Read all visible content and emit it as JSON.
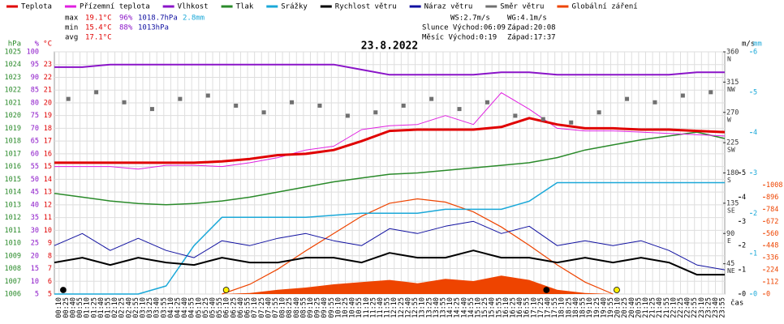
{
  "chart_data": {
    "type": "line",
    "title": "23.8.2022",
    "x_label": "čas",
    "xlim": [
      0,
      1440
    ],
    "x": [
      0,
      60,
      120,
      180,
      240,
      300,
      360,
      420,
      480,
      540,
      600,
      660,
      720,
      780,
      840,
      900,
      960,
      1020,
      1080,
      1140,
      1200,
      1260,
      1320,
      1380,
      1440
    ],
    "xticks": [
      {
        "value": 10,
        "label": "00:10"
      },
      {
        "value": 25,
        "label": "00:25"
      },
      {
        "value": 40,
        "label": "00:40"
      },
      {
        "value": 55,
        "label": "00:55"
      },
      {
        "value": 70,
        "label": "01:10"
      },
      {
        "value": 85,
        "label": "01:25"
      },
      {
        "value": 100,
        "label": "01:40"
      },
      {
        "value": 115,
        "label": "01:55"
      },
      {
        "value": 130,
        "label": "02:10"
      },
      {
        "value": 145,
        "label": "02:25"
      },
      {
        "value": 160,
        "label": "02:40"
      },
      {
        "value": 175,
        "label": "02:55"
      },
      {
        "value": 190,
        "label": "03:10"
      },
      {
        "value": 205,
        "label": "03:25"
      },
      {
        "value": 220,
        "label": "03:40"
      },
      {
        "value": 235,
        "label": "03:55"
      },
      {
        "value": 250,
        "label": "04:10"
      },
      {
        "value": 265,
        "label": "04:25"
      },
      {
        "value": 280,
        "label": "04:40"
      },
      {
        "value": 295,
        "label": "04:55"
      },
      {
        "value": 310,
        "label": "05:10"
      },
      {
        "value": 325,
        "label": "05:25"
      },
      {
        "value": 340,
        "label": "05:40"
      },
      {
        "value": 355,
        "label": "05:55"
      },
      {
        "value": 370,
        "label": "06:10"
      },
      {
        "value": 385,
        "label": "06:25"
      },
      {
        "value": 400,
        "label": "06:40"
      },
      {
        "value": 415,
        "label": "06:55"
      },
      {
        "value": 430,
        "label": "07:10"
      },
      {
        "value": 445,
        "label": "07:25"
      },
      {
        "value": 460,
        "label": "07:40"
      },
      {
        "value": 475,
        "label": "07:55"
      },
      {
        "value": 490,
        "label": "08:10"
      },
      {
        "value": 505,
        "label": "08:25"
      },
      {
        "value": 520,
        "label": "08:40"
      },
      {
        "value": 535,
        "label": "08:55"
      },
      {
        "value": 550,
        "label": "09:10"
      },
      {
        "value": 565,
        "label": "09:25"
      },
      {
        "value": 580,
        "label": "09:40"
      },
      {
        "value": 595,
        "label": "09:55"
      },
      {
        "value": 610,
        "label": "10:10"
      },
      {
        "value": 625,
        "label": "10:25"
      },
      {
        "value": 640,
        "label": "10:40"
      },
      {
        "value": 655,
        "label": "10:55"
      },
      {
        "value": 670,
        "label": "11:10"
      },
      {
        "value": 685,
        "label": "11:25"
      },
      {
        "value": 700,
        "label": "11:40"
      },
      {
        "value": 715,
        "label": "11:55"
      },
      {
        "value": 730,
        "label": "12:10"
      },
      {
        "value": 745,
        "label": "12:25"
      },
      {
        "value": 760,
        "label": "12:40"
      },
      {
        "value": 775,
        "label": "12:55"
      },
      {
        "value": 790,
        "label": "13:10"
      },
      {
        "value": 805,
        "label": "13:25"
      },
      {
        "value": 820,
        "label": "13:40"
      },
      {
        "value": 835,
        "label": "13:55"
      },
      {
        "value": 850,
        "label": "14:10"
      },
      {
        "value": 865,
        "label": "14:25"
      },
      {
        "value": 880,
        "label": "14:40"
      },
      {
        "value": 895,
        "label": "14:55"
      },
      {
        "value": 910,
        "label": "15:10"
      },
      {
        "value": 925,
        "label": "15:25"
      },
      {
        "value": 940,
        "label": "15:40"
      },
      {
        "value": 955,
        "label": "15:55"
      },
      {
        "value": 970,
        "label": "16:10"
      },
      {
        "value": 985,
        "label": "16:25"
      },
      {
        "value": 1000,
        "label": "16:40"
      },
      {
        "value": 1015,
        "label": "16:55"
      },
      {
        "value": 1030,
        "label": "17:10"
      },
      {
        "value": 1045,
        "label": "17:25"
      },
      {
        "value": 1060,
        "label": "17:40"
      },
      {
        "value": 1075,
        "label": "17:55"
      },
      {
        "value": 1090,
        "label": "18:10"
      },
      {
        "value": 1105,
        "label": "18:25"
      },
      {
        "value": 1120,
        "label": "18:40"
      },
      {
        "value": 1135,
        "label": "18:55"
      },
      {
        "value": 1150,
        "label": "19:10"
      },
      {
        "value": 1165,
        "label": "19:25"
      },
      {
        "value": 1180,
        "label": "19:40"
      },
      {
        "value": 1195,
        "label": "19:55"
      },
      {
        "value": 1210,
        "label": "20:10"
      },
      {
        "value": 1225,
        "label": "20:25"
      },
      {
        "value": 1240,
        "label": "20:40"
      },
      {
        "value": 1255,
        "label": "20:55"
      },
      {
        "value": 1270,
        "label": "21:10"
      },
      {
        "value": 1285,
        "label": "21:25"
      },
      {
        "value": 1300,
        "label": "21:40"
      },
      {
        "value": 1315,
        "label": "21:55"
      },
      {
        "value": 1330,
        "label": "22:10"
      },
      {
        "value": 1345,
        "label": "22:25"
      },
      {
        "value": 1360,
        "label": "22:40"
      },
      {
        "value": 1375,
        "label": "22:55"
      },
      {
        "value": 1390,
        "label": "23:10"
      },
      {
        "value": 1405,
        "label": "23:25"
      },
      {
        "value": 1420,
        "label": "23:40"
      },
      {
        "value": 1435,
        "label": "23:55"
      }
    ],
    "grid": true,
    "axes": [
      {
        "unit": "hPa",
        "color": "#2a8a2a",
        "side": "left",
        "ylim": [
          1006,
          1025
        ],
        "yticks": [
          1006,
          1007,
          1008,
          1009,
          1010,
          1011,
          1012,
          1013,
          1014,
          1015,
          1016,
          1017,
          1018,
          1019,
          1020,
          1021,
          1022,
          1023,
          1024,
          1025
        ]
      },
      {
        "unit": "%",
        "color": "#8a14c8",
        "side": "left",
        "ylim": [
          5,
          100
        ],
        "yticks": [
          5,
          10,
          15,
          20,
          25,
          30,
          35,
          40,
          45,
          50,
          55,
          60,
          65,
          70,
          75,
          80,
          85,
          90,
          95,
          100
        ]
      },
      {
        "unit": "°C",
        "color": "#e00000",
        "side": "left",
        "ylim": [
          5,
          24
        ],
        "yticks": [
          5,
          6,
          7,
          8,
          9,
          10,
          11,
          12,
          13,
          14,
          15,
          16,
          17,
          18,
          19,
          20,
          21,
          22,
          23
        ]
      },
      {
        "color": "#333333",
        "side": "right",
        "ylim": [
          0,
          360
        ],
        "yticks": [
          45,
          90,
          135,
          180,
          225,
          270,
          315,
          360
        ],
        "tick_names": [
          "NE",
          "E",
          "SE",
          "S",
          "SW",
          "W",
          "NW",
          "N"
        ]
      },
      {
        "unit": "m/s",
        "color": "#000000",
        "side": "right",
        "ylim": [
          0,
          10
        ],
        "yticks": [
          0,
          1,
          2,
          3,
          4,
          5
        ]
      },
      {
        "unit": "mm",
        "color": "#1aa8d8",
        "side": "right",
        "ylim": [
          0,
          6
        ],
        "yticks": [
          0,
          1,
          2,
          3,
          4,
          5,
          6
        ]
      },
      {
        "color": "#ee4400",
        "side": "right",
        "ylim": [
          0,
          2240
        ],
        "yticks": [
          0,
          112,
          224,
          336,
          448,
          560,
          672,
          784,
          896,
          1008
        ]
      }
    ],
    "series": [
      {
        "name": "Teplota",
        "color": "#e00000",
        "axis": 2,
        "width": 3,
        "values": [
          15.3,
          15.3,
          15.3,
          15.3,
          15.3,
          15.3,
          15.4,
          15.6,
          15.9,
          16.0,
          16.3,
          17.0,
          17.8,
          17.9,
          17.9,
          17.9,
          18.1,
          18.8,
          18.3,
          18.0,
          18.0,
          17.9,
          17.9,
          17.8,
          17.7
        ]
      },
      {
        "name": "Přízemní teplota",
        "color": "#e020e0",
        "axis": 2,
        "width": 1,
        "values": [
          15.0,
          15.0,
          15.0,
          14.8,
          15.1,
          15.1,
          15.0,
          15.3,
          15.7,
          16.3,
          16.6,
          17.9,
          18.2,
          18.3,
          19.0,
          18.3,
          20.8,
          19.5,
          18.0,
          17.8,
          17.8,
          17.7,
          17.6,
          17.5,
          17.4
        ]
      },
      {
        "name": "Vlhkost",
        "color": "#8a14c8",
        "axis": 1,
        "width": 2,
        "values": [
          94,
          94,
          95,
          95,
          95,
          95,
          95,
          95,
          95,
          95,
          95,
          93,
          91,
          91,
          91,
          91,
          92,
          92,
          91,
          91,
          91,
          91,
          91,
          92,
          92
        ]
      },
      {
        "name": "Tlak",
        "color": "#2a8a2a",
        "axis": 0,
        "width": 1.5,
        "values": [
          1013.9,
          1013.6,
          1013.3,
          1013.1,
          1013.0,
          1013.1,
          1013.3,
          1013.6,
          1014.0,
          1014.4,
          1014.8,
          1015.1,
          1015.4,
          1015.5,
          1015.7,
          1015.9,
          1016.1,
          1016.3,
          1016.7,
          1017.3,
          1017.7,
          1018.1,
          1018.4,
          1018.7,
          1018.2
        ]
      },
      {
        "name": "Srážky",
        "color": "#1aa8d8",
        "axis": 5,
        "width": 1.5,
        "values": [
          0,
          0,
          0,
          0,
          0.2,
          1.2,
          1.9,
          1.9,
          1.9,
          1.9,
          1.95,
          2.0,
          2.0,
          2.0,
          2.1,
          2.1,
          2.1,
          2.3,
          2.76,
          2.76,
          2.76,
          2.76,
          2.76,
          2.76,
          2.76
        ]
      },
      {
        "name": "Rychlost větru",
        "color": "#000000",
        "axis": 4,
        "width": 2,
        "values": [
          1.3,
          1.5,
          1.2,
          1.5,
          1.3,
          1.2,
          1.5,
          1.3,
          1.3,
          1.5,
          1.5,
          1.3,
          1.7,
          1.5,
          1.5,
          1.8,
          1.5,
          1.5,
          1.3,
          1.5,
          1.3,
          1.5,
          1.3,
          0.8,
          0.8
        ]
      },
      {
        "name": "Náraz větru",
        "color": "#1010a0",
        "axis": 4,
        "width": 1,
        "values": [
          2.0,
          2.5,
          1.8,
          2.3,
          1.8,
          1.5,
          2.2,
          2.0,
          2.3,
          2.5,
          2.2,
          2.0,
          2.7,
          2.5,
          2.8,
          3.0,
          2.5,
          2.8,
          2.0,
          2.2,
          2.0,
          2.2,
          1.8,
          1.2,
          1.0
        ]
      },
      {
        "name": "Směr větru",
        "color": "#707070",
        "axis": 3,
        "style": "points",
        "x": [
          30,
          90,
          150,
          210,
          270,
          330,
          390,
          450,
          510,
          570,
          630,
          690,
          750,
          810,
          870,
          930,
          990,
          1050,
          1110,
          1170,
          1230,
          1290,
          1350,
          1410
        ],
        "values": [
          290,
          300,
          285,
          275,
          290,
          295,
          280,
          270,
          285,
          280,
          265,
          270,
          280,
          290,
          275,
          285,
          265,
          260,
          255,
          270,
          290,
          285,
          295,
          300
        ]
      },
      {
        "name": "Globální záření",
        "color": "#ee4400",
        "axis": 6,
        "style": "area",
        "values": [
          0,
          0,
          0,
          0,
          0,
          0,
          0,
          10,
          40,
          60,
          90,
          110,
          130,
          100,
          140,
          120,
          170,
          130,
          40,
          10,
          0,
          0,
          0,
          0,
          0
        ],
        "envelope": [
          null,
          null,
          null,
          null,
          null,
          null,
          0,
          90,
          230,
          400,
          560,
          720,
          840,
          880,
          850,
          760,
          620,
          450,
          270,
          110,
          0,
          null,
          null,
          null,
          null
        ]
      }
    ],
    "stats": [
      [
        {
          "text": "max",
          "color": "#000000"
        },
        {
          "text": "19.1°C",
          "color": "#e00000"
        },
        {
          "text": "96%",
          "color": "#8a14c8"
        },
        {
          "text": "1018.7hPa",
          "color": "#1010a0"
        },
        {
          "text": "2.8mm",
          "color": "#1aa8d8"
        }
      ],
      [
        {
          "text": "min",
          "color": "#000000"
        },
        {
          "text": "15.4°C",
          "color": "#e00000"
        },
        {
          "text": "88%",
          "color": "#8a14c8"
        },
        {
          "text": "1013hPa",
          "color": "#1010a0"
        }
      ],
      [
        {
          "text": "avg",
          "color": "#000000"
        },
        {
          "text": "17.1°C",
          "color": "#e00000"
        }
      ]
    ],
    "info": [
      [
        "WS:2.7m/s",
        "WG:4.1m/s"
      ],
      [
        "Slunce Východ:06:09",
        "Západ:20:08"
      ],
      [
        "Měsíc Východ:0:19",
        "Západ:17:37"
      ]
    ],
    "sun_moon": [
      {
        "x": 19,
        "color": "#000000"
      },
      {
        "x": 369,
        "color": "#ffee00"
      },
      {
        "x": 1057,
        "color": "#000000"
      },
      {
        "x": 1208,
        "color": "#ffee00"
      }
    ]
  }
}
